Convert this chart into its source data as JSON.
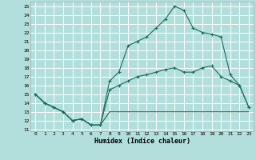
{
  "bg_color": "#b2dfdb",
  "grid_color": "#ffffff",
  "line_color": "#1a6b5a",
  "xlabel": "Humidex (Indice chaleur)",
  "xlim": [
    -0.5,
    23.5
  ],
  "ylim": [
    10.8,
    25.5
  ],
  "yticks": [
    11,
    12,
    13,
    14,
    15,
    16,
    17,
    18,
    19,
    20,
    21,
    22,
    23,
    24,
    25
  ],
  "xticks": [
    0,
    1,
    2,
    3,
    4,
    5,
    6,
    7,
    8,
    9,
    10,
    11,
    12,
    13,
    14,
    15,
    16,
    17,
    18,
    19,
    20,
    21,
    22,
    23
  ],
  "series_bot_x": [
    0,
    1,
    2,
    3,
    4,
    5,
    6,
    7,
    8,
    9,
    10,
    11,
    12,
    13,
    14,
    15,
    16,
    17,
    18,
    19,
    20,
    21,
    22,
    23
  ],
  "series_bot_y": [
    15.0,
    14.0,
    13.5,
    13.0,
    12.0,
    12.2,
    11.5,
    11.5,
    13.0,
    13.0,
    13.0,
    13.0,
    13.0,
    13.0,
    13.0,
    13.0,
    13.0,
    13.0,
    13.0,
    13.0,
    13.0,
    13.0,
    13.0,
    13.0
  ],
  "series_mid_x": [
    0,
    1,
    2,
    3,
    4,
    5,
    6,
    7,
    8,
    9,
    10,
    11,
    12,
    13,
    14,
    15,
    16,
    17,
    18,
    19,
    20,
    21,
    22,
    23
  ],
  "series_mid_y": [
    15.0,
    14.0,
    13.5,
    13.0,
    12.0,
    12.2,
    11.5,
    11.5,
    15.5,
    16.0,
    16.5,
    17.0,
    17.2,
    17.5,
    17.8,
    18.0,
    17.5,
    17.5,
    18.0,
    18.2,
    17.0,
    16.5,
    16.0,
    13.5
  ],
  "series_top_x": [
    0,
    1,
    2,
    3,
    4,
    5,
    6,
    7,
    8,
    9,
    10,
    11,
    12,
    13,
    14,
    15,
    16,
    17,
    18,
    19,
    20,
    21,
    22,
    23
  ],
  "series_top_y": [
    15.0,
    14.0,
    13.5,
    13.0,
    12.0,
    12.2,
    11.5,
    11.5,
    16.5,
    17.5,
    20.5,
    21.0,
    21.5,
    22.5,
    23.5,
    25.0,
    24.5,
    22.5,
    22.0,
    21.8,
    21.5,
    17.2,
    16.0,
    13.5
  ]
}
